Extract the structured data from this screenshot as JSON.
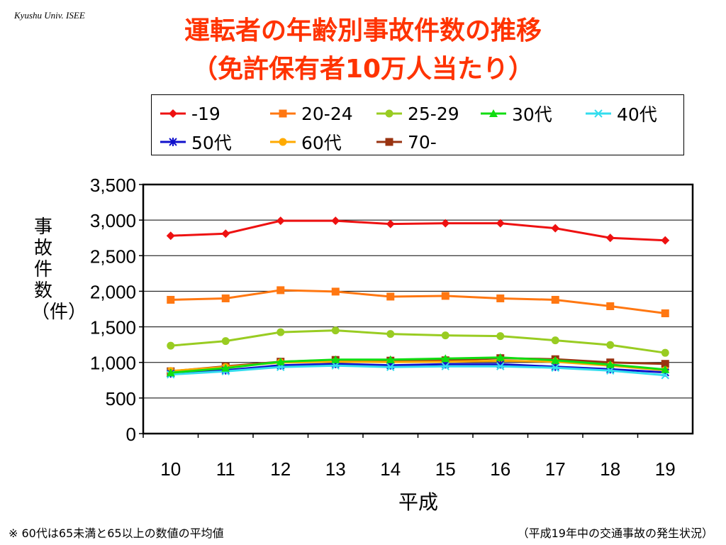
{
  "header": {
    "org": "Kyushu Univ. ISEE",
    "title_line1": "運転者の年齢別事故件数の推移",
    "title_line2": "（免許保有者10万人当たり）"
  },
  "footer": {
    "note_left": "※ 60代は65未満と65以上の数値の平均値",
    "note_right": "（平成19年中の交通事故の発生状況）"
  },
  "chart_data": {
    "type": "line",
    "categories": [
      "10",
      "11",
      "12",
      "13",
      "14",
      "15",
      "16",
      "17",
      "18",
      "19"
    ],
    "xlabel": "平成",
    "ylabel": "事故件数（件）",
    "ylim": [
      0,
      3500
    ],
    "yticks": [
      "0",
      "500",
      "1,000",
      "1,500",
      "2,000",
      "2,500",
      "3,000",
      "3,500"
    ],
    "grid": true,
    "legend_placement": "top",
    "series": [
      {
        "name": "-19",
        "color": "#ee1111",
        "marker": "diamond",
        "values": [
          2780,
          2810,
          2990,
          2990,
          2945,
          2955,
          2955,
          2885,
          2750,
          2715
        ]
      },
      {
        "name": "20-24",
        "color": "#ff7711",
        "marker": "square",
        "values": [
          1880,
          1900,
          2015,
          1995,
          1925,
          1935,
          1900,
          1880,
          1790,
          1690
        ]
      },
      {
        "name": "25-29",
        "color": "#99cc22",
        "marker": "circle",
        "values": [
          1235,
          1300,
          1425,
          1450,
          1400,
          1380,
          1370,
          1310,
          1245,
          1135
        ]
      },
      {
        "name": "30代",
        "color": "#11dd11",
        "marker": "triangle",
        "values": [
          855,
          920,
          1010,
          1040,
          1040,
          1055,
          1070,
          1030,
          970,
          900
        ]
      },
      {
        "name": "40代",
        "color": "#33ddee",
        "marker": "x",
        "values": [
          830,
          875,
          935,
          955,
          935,
          945,
          945,
          925,
          885,
          820
        ]
      },
      {
        "name": "50代",
        "color": "#1111cc",
        "marker": "star",
        "values": [
          845,
          890,
          960,
          980,
          960,
          975,
          975,
          940,
          905,
          860
        ]
      },
      {
        "name": "60代",
        "color": "#ffaa00",
        "marker": "circle",
        "values": [
          880,
          935,
          1000,
          1010,
          1005,
          1010,
          1025,
          1010,
          955,
          890
        ]
      },
      {
        "name": "70-",
        "color": "#993311",
        "marker": "square",
        "values": [
          875,
          945,
          1010,
          1035,
          1025,
          1030,
          1060,
          1045,
          1000,
          980
        ]
      }
    ]
  }
}
